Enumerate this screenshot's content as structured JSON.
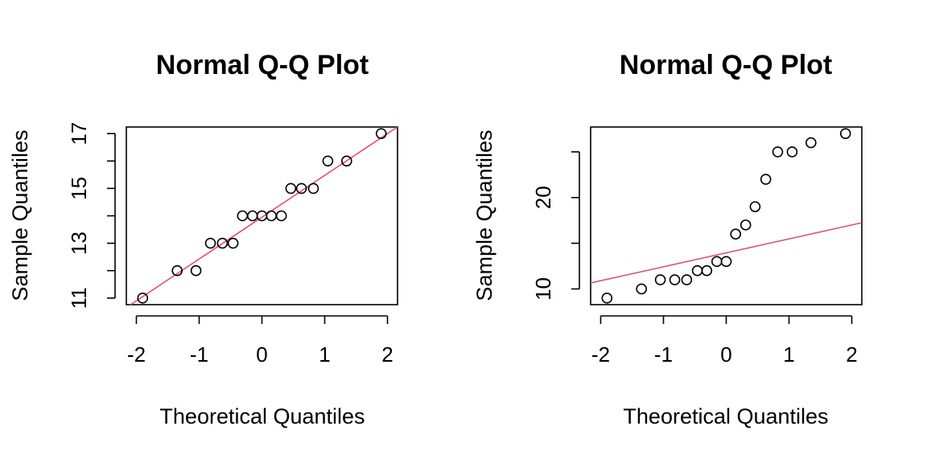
{
  "chart_data": [
    {
      "type": "scatter",
      "title": "Normal Q-Q Plot",
      "xlabel": "Theoretical Quantiles",
      "ylabel": "Sample Quantiles",
      "xlim": [
        -2,
        2
      ],
      "ylim": [
        11,
        17
      ],
      "xticks": [
        -2,
        -1,
        0,
        1,
        2
      ],
      "yticks": [
        11,
        13,
        15,
        17
      ],
      "yticks_minor": [
        12,
        14,
        16
      ],
      "x": [
        -1.9,
        -1.35,
        -1.05,
        -0.82,
        -0.63,
        -0.46,
        -0.31,
        -0.15,
        0.0,
        0.15,
        0.31,
        0.46,
        0.63,
        0.82,
        1.05,
        1.35,
        1.9
      ],
      "y": [
        11,
        12,
        12,
        13,
        13,
        13,
        14,
        14,
        14,
        14,
        14,
        15,
        15,
        15,
        16,
        16,
        17
      ],
      "reference_line": {
        "x": [
          -2,
          2
        ],
        "y": [
          10.9,
          17.0
        ]
      },
      "line_color": "#DF536B",
      "grid": false
    },
    {
      "type": "scatter",
      "title": "Normal Q-Q Plot",
      "xlabel": "Theoretical Quantiles",
      "ylabel": "Sample Quantiles",
      "xlim": [
        -2,
        2
      ],
      "ylim": [
        9,
        27
      ],
      "xticks": [
        -2,
        -1,
        0,
        1,
        2
      ],
      "yticks": [
        10,
        20
      ],
      "yticks_minor": [
        15,
        25
      ],
      "x": [
        -1.9,
        -1.35,
        -1.05,
        -0.82,
        -0.63,
        -0.46,
        -0.31,
        -0.15,
        0.0,
        0.15,
        0.31,
        0.46,
        0.63,
        0.82,
        1.05,
        1.35,
        1.9
      ],
      "y": [
        9,
        10,
        11,
        11,
        11,
        12,
        12,
        13,
        13,
        16,
        17,
        19,
        22,
        25,
        25,
        26,
        27
      ],
      "reference_line": {
        "x": [
          -2,
          2
        ],
        "y": [
          10.9,
          17.0
        ]
      },
      "line_color": "#DF536B",
      "grid": false
    }
  ]
}
